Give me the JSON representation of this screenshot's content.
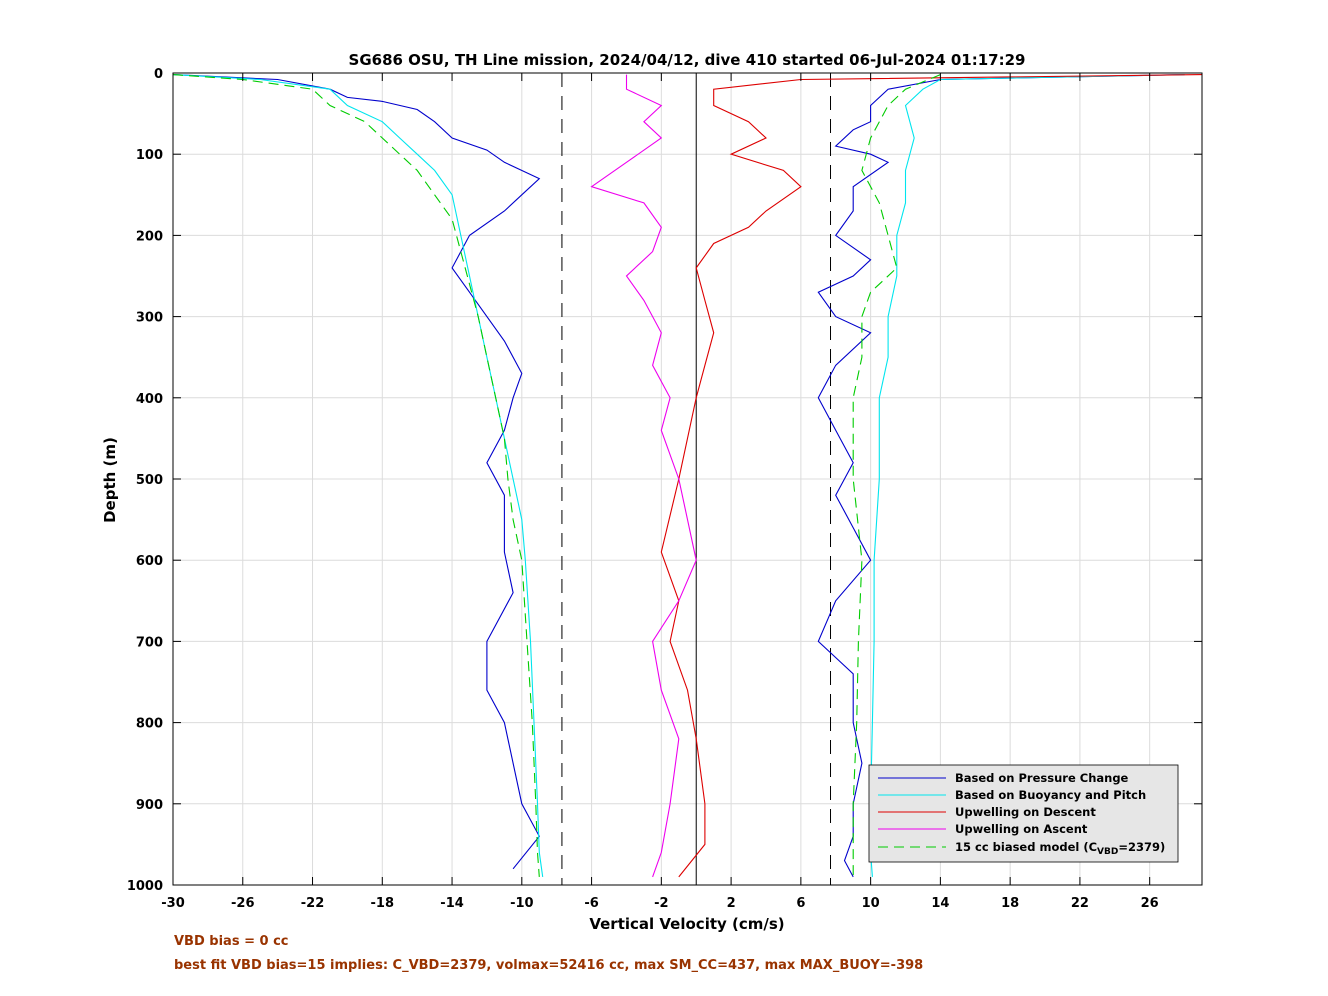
{
  "chart_data": {
    "type": "line",
    "title": "SG686 OSU, TH Line mission, 2024/04/12, dive 410 started 06-Jul-2024 01:17:29",
    "xlabel": "Vertical Velocity (cm/s)",
    "ylabel": "Depth (m)",
    "xlim": [
      -30,
      29
    ],
    "ylim": [
      0,
      1000
    ],
    "y_reversed": true,
    "grid": true,
    "x_ticks": [
      -30,
      -26,
      -22,
      -18,
      -14,
      -10,
      -6,
      -2,
      2,
      6,
      10,
      14,
      18,
      22,
      26
    ],
    "y_ticks": [
      0,
      100,
      200,
      300,
      400,
      500,
      600,
      700,
      800,
      900,
      1000
    ],
    "reference_lines": [
      {
        "x": -7.7,
        "style": "dashed",
        "color": "#000000"
      },
      {
        "x": 0,
        "style": "solid",
        "color": "#000000"
      },
      {
        "x": 7.7,
        "style": "dashed",
        "color": "#000000"
      }
    ],
    "legend_position": "bottom-right",
    "series": [
      {
        "name": "Based on Pressure Change",
        "color": "#0000cc",
        "style": "solid",
        "profiles": [
          {
            "x": [
              -30,
              -24,
              -21,
              -20,
              -18,
              -16,
              -15,
              -14,
              -12,
              -11,
              -9,
              -10,
              -11,
              -13,
              -14,
              -13,
              -12,
              -11,
              -10,
              -10.5,
              -11,
              -12,
              -11,
              -11,
              -11,
              -10.5,
              -12,
              -12,
              -11,
              -10.5,
              -10,
              -9,
              -10.5
            ],
            "y": [
              2,
              8,
              20,
              30,
              35,
              45,
              60,
              80,
              95,
              110,
              130,
              150,
              170,
              200,
              240,
              270,
              300,
              330,
              370,
              400,
              440,
              480,
              520,
              560,
              590,
              640,
              700,
              760,
              800,
              850,
              900,
              940,
              980
            ]
          },
          {
            "x": [
              28,
              14,
              11,
              10,
              10,
              9,
              8,
              10,
              11,
              9,
              9,
              8,
              10,
              9,
              7,
              8,
              10,
              8,
              7,
              8,
              9,
              8,
              9,
              10,
              8,
              7,
              9,
              9,
              9.5,
              9,
              9,
              8.5,
              9
            ],
            "y": [
              2,
              8,
              20,
              40,
              60,
              70,
              90,
              100,
              110,
              140,
              170,
              200,
              230,
              250,
              270,
              300,
              320,
              360,
              400,
              440,
              480,
              520,
              560,
              600,
              650,
              700,
              740,
              800,
              850,
              900,
              940,
              970,
              990
            ]
          }
        ]
      },
      {
        "name": "Based on Buoyancy and Pitch",
        "color": "#00e5ee",
        "style": "solid",
        "profiles": [
          {
            "x": [
              -30,
              -25,
              -21,
              -20,
              -18,
              -17,
              -16,
              -15,
              -14,
              -13.5,
              -13,
              -12.5,
              -12,
              -11.5,
              -11,
              -10.5,
              -10,
              -9.8,
              -9.5,
              -9.3,
              -9.1,
              -9,
              -8.8
            ],
            "y": [
              2,
              8,
              20,
              40,
              60,
              80,
              100,
              120,
              150,
              200,
              250,
              300,
              350,
              400,
              450,
              500,
              550,
              600,
              700,
              800,
              900,
              960,
              990
            ]
          },
          {
            "x": [
              28,
              14,
              13,
              12,
              12.5,
              12,
              12,
              11.5,
              11.5,
              11,
              11,
              10.5,
              10.5,
              10.5,
              10.2,
              10.2,
              10.1,
              10,
              10,
              10.1
            ],
            "y": [
              2,
              8,
              20,
              40,
              80,
              120,
              160,
              200,
              250,
              300,
              350,
              400,
              450,
              500,
              600,
              700,
              800,
              900,
              960,
              990
            ]
          }
        ]
      },
      {
        "name": "Upwelling on Descent",
        "color": "#dd0000",
        "style": "solid",
        "profiles": [
          {
            "x": [
              29,
              6,
              1,
              1,
              3,
              4,
              2,
              5,
              6,
              4,
              3,
              1,
              0,
              0.5,
              1,
              0.5,
              0,
              -0.5,
              -1,
              -2,
              -1,
              -1.5,
              -0.5,
              0,
              0.5,
              0.5,
              -1
            ],
            "y": [
              2,
              8,
              20,
              40,
              60,
              80,
              100,
              120,
              140,
              170,
              190,
              210,
              240,
              280,
              320,
              360,
              400,
              450,
              500,
              590,
              650,
              700,
              760,
              820,
              900,
              950,
              990
            ]
          }
        ]
      },
      {
        "name": "Upwelling on Ascent",
        "color": "#ee00ee",
        "style": "solid",
        "profiles": [
          {
            "x": [
              -4,
              -4,
              -2,
              -3,
              -2,
              -4,
              -6,
              -3,
              -2,
              -2.5,
              -4,
              -3,
              -2,
              -2.5,
              -1.5,
              -2,
              -1,
              0,
              -1,
              -2.5,
              -2,
              -1,
              -1.5,
              -2,
              -2.5
            ],
            "y": [
              2,
              20,
              40,
              60,
              80,
              110,
              140,
              160,
              190,
              220,
              250,
              280,
              320,
              360,
              400,
              440,
              500,
              600,
              650,
              700,
              760,
              820,
              900,
              960,
              990
            ]
          }
        ]
      },
      {
        "name": "15 cc biased model (C_VBD=2379)",
        "color": "#00cc00",
        "style": "dashed",
        "profiles": [
          {
            "x": [
              -30,
              -26,
              -22,
              -21,
              -19,
              -18,
              -17,
              -16,
              -15,
              -14,
              -13.5,
              -13,
              -12.5,
              -12,
              -11.5,
              -11,
              -10.8,
              -10.5,
              -10,
              -9.7,
              -9.4,
              -9.2,
              -9.1,
              -9
            ],
            "y": [
              2,
              8,
              20,
              40,
              60,
              80,
              100,
              120,
              150,
              180,
              220,
              260,
              300,
              350,
              400,
              450,
              500,
              550,
              600,
              700,
              800,
              900,
              960,
              990
            ]
          },
          {
            "x": [
              14,
              12,
              11,
              10,
              9.5,
              10.5,
              11,
              11.5,
              10,
              9.5,
              9.5,
              9,
              9,
              9,
              9.5,
              9.3,
              9.2,
              9,
              9
            ],
            "y": [
              2,
              20,
              40,
              80,
              120,
              160,
              200,
              240,
              270,
              300,
              350,
              400,
              450,
              500,
              600,
              700,
              800,
              900,
              990
            ]
          }
        ]
      }
    ],
    "legend_entries": [
      "Based on Pressure Change",
      "Based on Buoyancy and Pitch",
      "Upwelling on Descent",
      "Upwelling on Ascent"
    ],
    "legend_model_prefix": "15 cc biased model (C",
    "legend_model_sub": "VBD",
    "legend_model_suffix": "=2379)"
  },
  "notes": {
    "vbd_bias": "VBD bias = 0 cc",
    "best_fit": "best fit VBD bias=15 implies: C_VBD=2379, volmax=52416 cc, max SM_CC=437, max MAX_BUOY=-398"
  }
}
